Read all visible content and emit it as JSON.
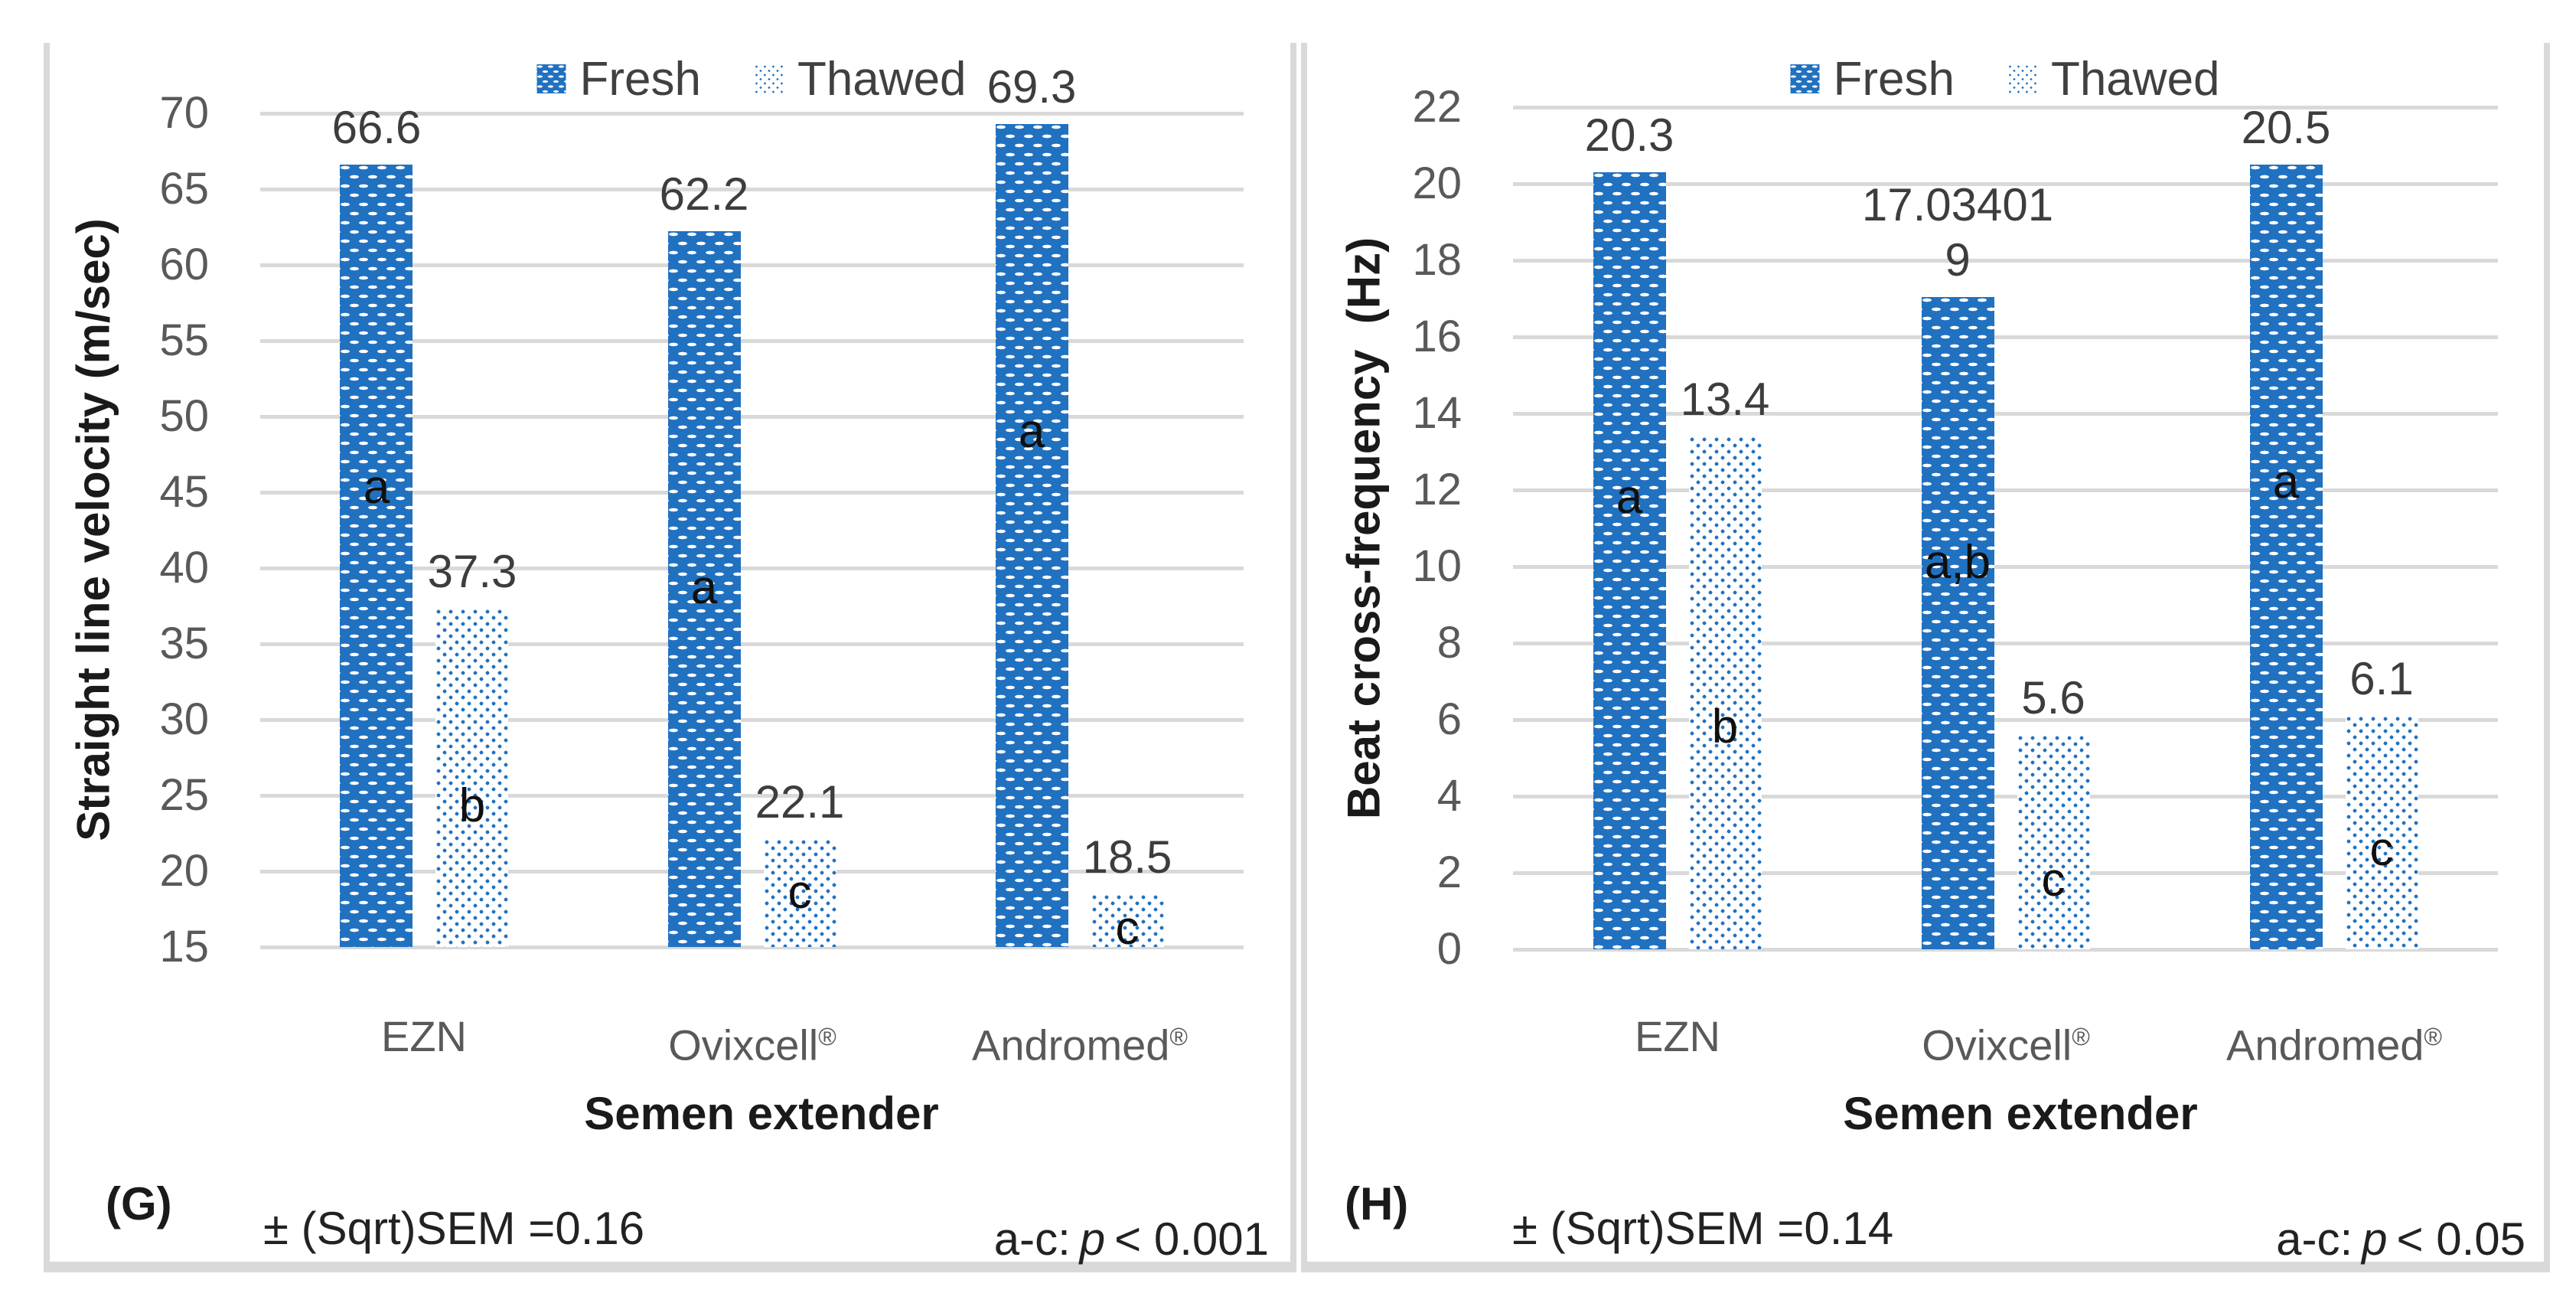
{
  "colors": {
    "bar_blue": "#2171C1",
    "grid_gray": "#D9D9D9",
    "panel_border_gray": "#D9D9D9",
    "tick_text": "#595959",
    "data_label_text": "#3D3D3D",
    "sig_letter_text": "#101010",
    "axis_title_text": "#1A1A1A",
    "legend_text": "#404040",
    "note_text": "#222222"
  },
  "chart_data": [
    {
      "type": "bar",
      "panel": "(G)",
      "title": "",
      "categories": [
        "EZN",
        "Ovixcell®",
        "Andromed®"
      ],
      "series": [
        {
          "name": "Fresh",
          "values": [
            66.6,
            62.2,
            69.3
          ],
          "data_labels": [
            "66.6",
            "62.2",
            "69.3"
          ],
          "sig_letters": [
            "a",
            "a",
            "a"
          ],
          "sig_letter_y": [
            45.3,
            38.7,
            49.0
          ]
        },
        {
          "name": "Thawed",
          "values": [
            37.3,
            22.1,
            18.5
          ],
          "data_labels": [
            "37.3",
            "22.1",
            "18.5"
          ],
          "sig_letters": [
            "b",
            "c",
            "c"
          ],
          "sig_letter_y": [
            24.3,
            18.6,
            16.2
          ]
        }
      ],
      "xlabel": "Semen extender",
      "ylabel": "Straight line velocity (m/sec)",
      "ylim": [
        15,
        70
      ],
      "ytick_step": 5,
      "yticks": [
        15,
        20,
        25,
        30,
        35,
        40,
        45,
        50,
        55,
        60,
        65,
        70
      ],
      "grid": true,
      "legend_position": "top",
      "annotations": {
        "sem": "± (Sqrt)SEM =0.16",
        "sig": {
          "prefix": "a-c:",
          "pvar": "p",
          "rest": "< 0.001"
        }
      }
    },
    {
      "type": "bar",
      "panel": "(H)",
      "title": "",
      "categories": [
        "EZN",
        "Ovixcell®",
        "Andromed®"
      ],
      "series": [
        {
          "name": "Fresh",
          "values": [
            20.3,
            17.034019,
            20.5
          ],
          "data_labels": [
            "20.3",
            "17.03401\n9",
            "20.5"
          ],
          "sig_letters": [
            "a",
            "a,b",
            "a"
          ],
          "sig_letter_y": [
            11.8,
            10.1,
            12.2
          ]
        },
        {
          "name": "Thawed",
          "values": [
            13.4,
            5.6,
            6.1
          ],
          "data_labels": [
            "13.4",
            "5.6",
            "6.1"
          ],
          "sig_letters": [
            "b",
            "c",
            "c"
          ],
          "sig_letter_y": [
            5.8,
            1.8,
            2.6
          ]
        }
      ],
      "xlabel": "Semen extender",
      "ylabel": "Beat cross-frequency  (Hz)",
      "ylim": [
        0,
        22
      ],
      "ytick_step": 2,
      "yticks": [
        0,
        2,
        4,
        6,
        8,
        10,
        12,
        14,
        16,
        18,
        20,
        22
      ],
      "grid": true,
      "legend_position": "top",
      "annotations": {
        "sem": "± (Sqrt)SEM =0.14",
        "sig": {
          "prefix": "a-c:",
          "pvar": "p",
          "rest": "< 0.05"
        }
      }
    }
  ]
}
